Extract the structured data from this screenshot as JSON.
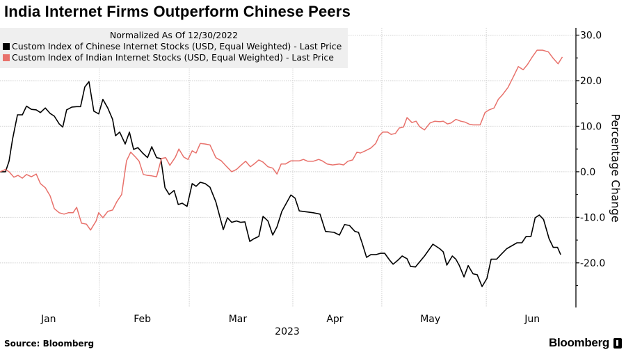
{
  "header": {
    "title": "India Internet Firms Outperform Chinese Peers"
  },
  "footer": {
    "source": "Source: Bloomberg",
    "brand": "Bloomberg"
  },
  "chart_data": {
    "type": "line",
    "title": "India Internet Firms Outperform Chinese Peers",
    "subtitle": "Normalized As Of 12/30/2022",
    "xlabel": "2023",
    "ylabel": "Percentage Change",
    "x_unit": "days since 12/30/2022",
    "xlim": [
      0,
      178
    ],
    "ylim": [
      -29.8,
      31.6
    ],
    "yticks": [
      30,
      20,
      10,
      0,
      -10,
      -20
    ],
    "ytick_labels": [
      "30.0",
      "20.0",
      "10.0",
      "0.0",
      "-10.0",
      "-20.0"
    ],
    "yminor": [
      25,
      15,
      5,
      -5,
      -15,
      -25
    ],
    "xticks": [
      {
        "label": "Jan",
        "x": 15
      },
      {
        "label": "Feb",
        "x": 44
      },
      {
        "label": "Mar",
        "x": 73.5
      },
      {
        "label": "Apr",
        "x": 103.5
      },
      {
        "label": "May",
        "x": 133
      },
      {
        "label": "Jun",
        "x": 164.5
      }
    ],
    "month_boundaries": [
      30.7,
      58.5,
      90.5,
      118,
      150.3
    ],
    "grid": true,
    "legend_position": "top-left",
    "series": [
      {
        "name": "Custom Index of Chinese Internet Stocks (USD, Equal Weighted) - Last Price",
        "color": "#000000",
        "points": [
          [
            0,
            0
          ],
          [
            1.7,
            0
          ],
          [
            2.8,
            2.3
          ],
          [
            3.9,
            7.2
          ],
          [
            5.4,
            12.5
          ],
          [
            6.9,
            12.5
          ],
          [
            8.2,
            14.4
          ],
          [
            9.7,
            13.7
          ],
          [
            11.2,
            13.6
          ],
          [
            12.5,
            13
          ],
          [
            14,
            14
          ],
          [
            15.5,
            12.8
          ],
          [
            16.8,
            12.2
          ],
          [
            18.3,
            10.5
          ],
          [
            19.4,
            9.8
          ],
          [
            20.6,
            13.6
          ],
          [
            22.2,
            14.2
          ],
          [
            23.7,
            14.3
          ],
          [
            24.9,
            14.3
          ],
          [
            26.2,
            18.6
          ],
          [
            27.5,
            19.8
          ],
          [
            29,
            13.3
          ],
          [
            30.5,
            12.7
          ],
          [
            31.8,
            15.9
          ],
          [
            33.3,
            14
          ],
          [
            34.8,
            11.5
          ],
          [
            35.7,
            7.9
          ],
          [
            37,
            8.7
          ],
          [
            38.7,
            6.1
          ],
          [
            40,
            8.7
          ],
          [
            41.3,
            4.9
          ],
          [
            42.6,
            5.3
          ],
          [
            44.1,
            4.1
          ],
          [
            45.6,
            3.1
          ],
          [
            46.9,
            5.5
          ],
          [
            48.4,
            3.1
          ],
          [
            49.7,
            2.9
          ],
          [
            51,
            -3.5
          ],
          [
            52.3,
            -5
          ],
          [
            53.8,
            -4.1
          ],
          [
            55.1,
            -7.2
          ],
          [
            56.3,
            -6.9
          ],
          [
            57.8,
            -7.6
          ],
          [
            59.4,
            -2.6
          ],
          [
            60.6,
            -3.2
          ],
          [
            61.9,
            -2.3
          ],
          [
            63.4,
            -2.6
          ],
          [
            64.9,
            -3.4
          ],
          [
            66.7,
            -6.6
          ],
          [
            69,
            -12.7
          ],
          [
            70.3,
            -10.1
          ],
          [
            71.6,
            -11.1
          ],
          [
            73.1,
            -10.8
          ],
          [
            74.4,
            -11.1
          ],
          [
            75.7,
            -11
          ],
          [
            77.2,
            -15.3
          ],
          [
            78.5,
            -14.7
          ],
          [
            80,
            -14.2
          ],
          [
            81.3,
            -9.8
          ],
          [
            82.8,
            -10.8
          ],
          [
            84.3,
            -13.9
          ],
          [
            85.6,
            -12.1
          ],
          [
            87.1,
            -8.7
          ],
          [
            89.9,
            -5.1
          ],
          [
            91.2,
            -5.8
          ],
          [
            92.5,
            -8.6
          ],
          [
            96.8,
            -9
          ],
          [
            98.9,
            -9.3
          ],
          [
            100.6,
            -13.1
          ],
          [
            103.2,
            -13.3
          ],
          [
            104.9,
            -13.9
          ],
          [
            106.5,
            -11.6
          ],
          [
            108,
            -11.8
          ],
          [
            109.7,
            -13.1
          ],
          [
            110.8,
            -13.3
          ],
          [
            111.8,
            -15.4
          ],
          [
            113.3,
            -18.8
          ],
          [
            114.6,
            -18.2
          ],
          [
            116.1,
            -18.2
          ],
          [
            117.6,
            -17.9
          ],
          [
            118.9,
            -17.9
          ],
          [
            120.4,
            -19.4
          ],
          [
            121.5,
            -20.3
          ],
          [
            123,
            -19.4
          ],
          [
            124.3,
            -18.5
          ],
          [
            125.8,
            -19.1
          ],
          [
            126.9,
            -20.8
          ],
          [
            128.4,
            -20.9
          ],
          [
            131.2,
            -18.5
          ],
          [
            133.8,
            -15.9
          ],
          [
            135.9,
            -16.9
          ],
          [
            137,
            -17.6
          ],
          [
            138.1,
            -20.5
          ],
          [
            139.8,
            -18.5
          ],
          [
            140.9,
            -19.2
          ],
          [
            141.9,
            -20.5
          ],
          [
            143.4,
            -23.1
          ],
          [
            144.7,
            -20.6
          ],
          [
            146.2,
            -22.4
          ],
          [
            147.5,
            -22.6
          ],
          [
            149,
            -25.2
          ],
          [
            150.5,
            -23.4
          ],
          [
            151.8,
            -19.2
          ],
          [
            153.5,
            -19.2
          ],
          [
            154.8,
            -18.2
          ],
          [
            156.6,
            -16.9
          ],
          [
            158.3,
            -16.2
          ],
          [
            159.8,
            -15.6
          ],
          [
            161.3,
            -15.6
          ],
          [
            162.6,
            -14.2
          ],
          [
            164.1,
            -14.2
          ],
          [
            165.4,
            -10.1
          ],
          [
            166.7,
            -9.5
          ],
          [
            168,
            -10.5
          ],
          [
            169.7,
            -14.7
          ],
          [
            171,
            -16.6
          ],
          [
            172.3,
            -16.6
          ],
          [
            173.3,
            -18.2
          ]
        ]
      },
      {
        "name": "Custom Index of Indian Internet Stocks (USD, Equal Weighted) - Last Price",
        "color": "#e8716b",
        "points": [
          [
            0,
            0
          ],
          [
            1.7,
            0.5
          ],
          [
            2.8,
            0
          ],
          [
            4.3,
            -1.2
          ],
          [
            5.6,
            -0.8
          ],
          [
            6.9,
            -1.4
          ],
          [
            8.2,
            -0.6
          ],
          [
            9.7,
            -1.1
          ],
          [
            11.2,
            -0.5
          ],
          [
            12.5,
            -2.6
          ],
          [
            14,
            -3.5
          ],
          [
            15.5,
            -5.3
          ],
          [
            16.8,
            -8.1
          ],
          [
            18.3,
            -9
          ],
          [
            19.8,
            -9.3
          ],
          [
            21.1,
            -9
          ],
          [
            22.6,
            -9
          ],
          [
            23.7,
            -7.8
          ],
          [
            25.2,
            -11.3
          ],
          [
            26.7,
            -11.5
          ],
          [
            28,
            -12.8
          ],
          [
            29.7,
            -10.8
          ],
          [
            30.5,
            -9
          ],
          [
            31.8,
            -10.1
          ],
          [
            33.3,
            -8.7
          ],
          [
            34.8,
            -8.4
          ],
          [
            36.1,
            -6.6
          ],
          [
            37.6,
            -5
          ],
          [
            39.1,
            2.4
          ],
          [
            40.4,
            4.3
          ],
          [
            41.9,
            3.2
          ],
          [
            43,
            2.3
          ],
          [
            44.3,
            -0.6
          ],
          [
            45.6,
            -0.8
          ],
          [
            46.9,
            -0.9
          ],
          [
            48.4,
            -1.1
          ],
          [
            49.9,
            2.9
          ],
          [
            51.2,
            3.1
          ],
          [
            52.5,
            1.4
          ],
          [
            54.2,
            3.2
          ],
          [
            55.3,
            5
          ],
          [
            56.8,
            3.2
          ],
          [
            58.1,
            2.7
          ],
          [
            59.4,
            4.6
          ],
          [
            60.6,
            4.1
          ],
          [
            61.9,
            6.2
          ],
          [
            63.4,
            6.1
          ],
          [
            64.9,
            5.9
          ],
          [
            66.7,
            3.1
          ],
          [
            68.4,
            2.4
          ],
          [
            70.1,
            1.1
          ],
          [
            71.6,
            0
          ],
          [
            73.1,
            0.5
          ],
          [
            74.6,
            1.5
          ],
          [
            75.9,
            2.3
          ],
          [
            77.4,
            1.1
          ],
          [
            78.7,
            1.8
          ],
          [
            80,
            2.6
          ],
          [
            81.3,
            2.1
          ],
          [
            82.8,
            1.1
          ],
          [
            84.3,
            0.8
          ],
          [
            85.6,
            -0.5
          ],
          [
            86.9,
            1.7
          ],
          [
            88.2,
            1.7
          ],
          [
            89.9,
            2.4
          ],
          [
            92.5,
            2.4
          ],
          [
            93.8,
            2.7
          ],
          [
            95.1,
            2.3
          ],
          [
            96.8,
            2.3
          ],
          [
            98.5,
            2.7
          ],
          [
            99.6,
            2.4
          ],
          [
            101.1,
            1.7
          ],
          [
            102.8,
            1.5
          ],
          [
            104.9,
            1.7
          ],
          [
            106.2,
            1.5
          ],
          [
            107.5,
            2.3
          ],
          [
            109,
            2.6
          ],
          [
            110.3,
            4.3
          ],
          [
            111.4,
            4.1
          ],
          [
            112.9,
            4.6
          ],
          [
            114.6,
            5.2
          ],
          [
            116.1,
            6.2
          ],
          [
            117.2,
            7.9
          ],
          [
            118.3,
            8.7
          ],
          [
            119.8,
            8.7
          ],
          [
            120.9,
            8.2
          ],
          [
            122.2,
            8.4
          ],
          [
            123.4,
            9.6
          ],
          [
            124.7,
            9.8
          ],
          [
            125.8,
            11.9
          ],
          [
            127.3,
            10.8
          ],
          [
            128.6,
            11.1
          ],
          [
            129.7,
            9.9
          ],
          [
            131.2,
            9.2
          ],
          [
            132.9,
            10.7
          ],
          [
            134.4,
            11.1
          ],
          [
            135.9,
            11
          ],
          [
            137,
            11.1
          ],
          [
            138.3,
            10.5
          ],
          [
            139.4,
            10.7
          ],
          [
            140.9,
            11.5
          ],
          [
            142.4,
            11.1
          ],
          [
            143.7,
            10.9
          ],
          [
            145.2,
            10.4
          ],
          [
            146.2,
            10.3
          ],
          [
            148.4,
            10.3
          ],
          [
            149.9,
            13
          ],
          [
            151.2,
            13.6
          ],
          [
            152.7,
            14
          ],
          [
            154,
            15.9
          ],
          [
            155.3,
            16.9
          ],
          [
            157,
            18.5
          ],
          [
            158.7,
            20.9
          ],
          [
            160.2,
            23.1
          ],
          [
            161.7,
            22.4
          ],
          [
            163,
            23.5
          ],
          [
            164.5,
            25.2
          ],
          [
            166,
            26.7
          ],
          [
            167.7,
            26.7
          ],
          [
            169.5,
            26.3
          ],
          [
            171,
            24.9
          ],
          [
            172.5,
            23.7
          ],
          [
            173.8,
            25.2
          ]
        ]
      }
    ]
  }
}
